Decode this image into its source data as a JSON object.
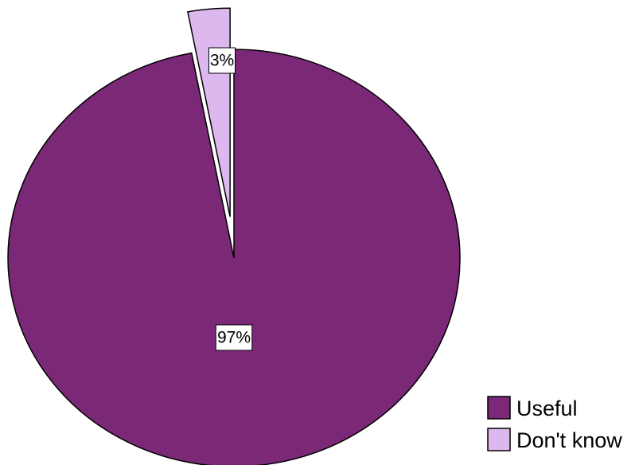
{
  "chart_data": {
    "type": "pie",
    "categories": [
      "Useful",
      "Don't know"
    ],
    "values": [
      97,
      3
    ],
    "slice_labels": [
      "97%",
      "3%"
    ],
    "exploded": [
      false,
      true
    ],
    "colors": [
      "#7b2877",
      "#dcb8ee"
    ],
    "border_color": "#000000",
    "legend": {
      "placement": "bottom-right",
      "entries": [
        "Useful",
        "Don't know"
      ]
    }
  }
}
